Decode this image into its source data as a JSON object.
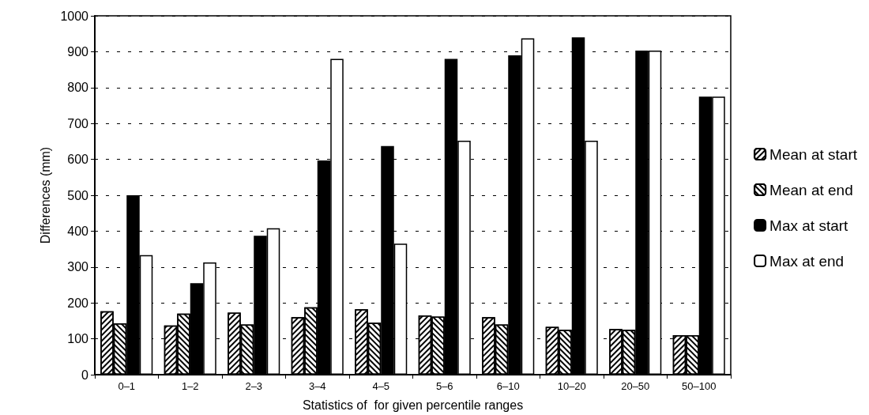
{
  "chart_data": {
    "type": "bar",
    "xlabel": "Statistics of  for given percentile ranges",
    "ylabel": "Differences (mm)",
    "categories": [
      "0–1",
      "1–2",
      "2–3",
      "3–4",
      "4–5",
      "5–6",
      "6–10",
      "10–20",
      "20–50",
      "50–100"
    ],
    "series": [
      {
        "name": "Mean at start",
        "color": "#ffffff",
        "values": [
          177,
          137,
          173,
          160,
          182,
          165,
          160,
          133,
          127,
          110
        ]
      },
      {
        "name": "Mean at end",
        "color": "#ffffff",
        "values": [
          143,
          170,
          140,
          188,
          145,
          162,
          140,
          125,
          125,
          110
        ]
      },
      {
        "name": "Max at start",
        "color": "#000000",
        "values": [
          500,
          255,
          387,
          597,
          637,
          880,
          890,
          940,
          903,
          775
        ]
      },
      {
        "name": "Max at end",
        "color": "#ffffff",
        "values": [
          333,
          313,
          408,
          880,
          365,
          652,
          937,
          652,
          903,
          775
        ]
      }
    ],
    "ylim": [
      0,
      1000
    ],
    "yticks": [
      0,
      100,
      200,
      300,
      400,
      500,
      600,
      700,
      800,
      900,
      1000
    ],
    "grid": "y",
    "legend": "right"
  }
}
